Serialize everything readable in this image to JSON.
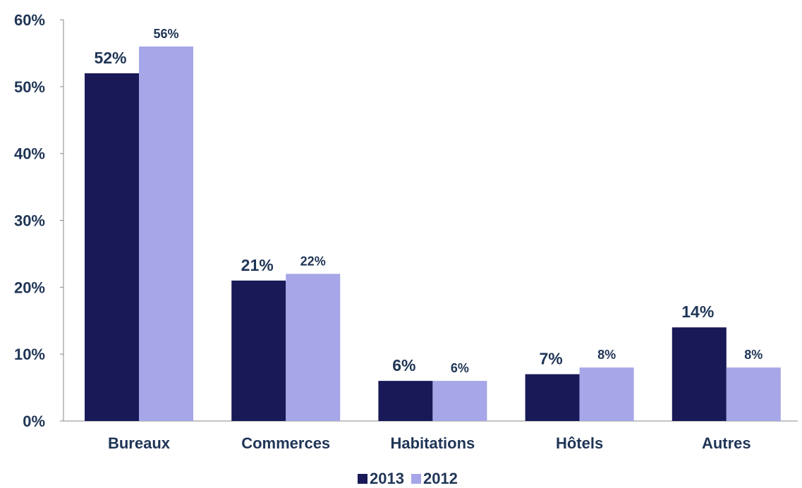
{
  "chart_data": {
    "type": "bar",
    "categories": [
      "Bureaux",
      "Commerces",
      "Habitations",
      "Hôtels",
      "Autres"
    ],
    "series": [
      {
        "name": "2013",
        "values": [
          52,
          21,
          6,
          7,
          14
        ],
        "labels": [
          "52%",
          "21%",
          "6%",
          "7%",
          "14%"
        ]
      },
      {
        "name": "2012",
        "values": [
          56,
          22,
          6,
          8,
          8
        ],
        "labels": [
          "56%",
          "22%",
          "6%",
          "8%",
          "8%"
        ]
      }
    ],
    "yticks": [
      "0%",
      "10%",
      "20%",
      "30%",
      "40%",
      "50%",
      "60%"
    ],
    "ylim": [
      0,
      60
    ],
    "title": "",
    "xlabel": "",
    "ylabel": "",
    "grid": false,
    "legend_position": "bottom-center",
    "colors": {
      "2013": "#191958",
      "2012": "#a6a6e8",
      "text": "#1f3556",
      "axis": "#888888"
    }
  }
}
